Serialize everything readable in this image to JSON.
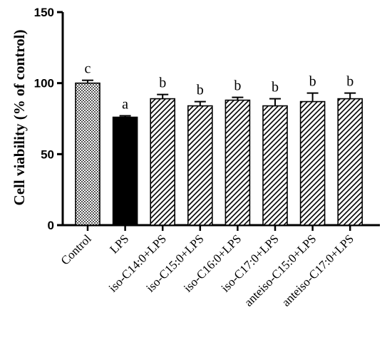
{
  "chart_data": {
    "type": "bar",
    "title": "",
    "xlabel": "",
    "ylabel": "Cell viability (% of control)",
    "ylim": [
      0,
      150
    ],
    "yticks": [
      "0",
      "50",
      "100",
      "150"
    ],
    "grid": false,
    "categories": [
      "Control",
      "LPS",
      "iso-C14:0+LPS",
      "iso-C15:0+LPS",
      "iso-C16:0+LPS",
      "iso-C17:0+LPS",
      "anteiso-C15:0+LPS",
      "anteiso-C17:0+LPS"
    ],
    "values": [
      100,
      76,
      89,
      84,
      88,
      84,
      87,
      89
    ],
    "errors": [
      2,
      1,
      3,
      3,
      2,
      5,
      6,
      4
    ],
    "significance_letters": [
      "c",
      "a",
      "b",
      "b",
      "b",
      "b",
      "b",
      "b"
    ],
    "fills": [
      "crosshatch",
      "solid",
      "diagonal",
      "diagonal",
      "diagonal",
      "diagonal",
      "diagonal",
      "diagonal"
    ],
    "colors": {
      "bar_solid": "#000000",
      "pattern_line": "#000000",
      "background": "#ffffff"
    }
  }
}
